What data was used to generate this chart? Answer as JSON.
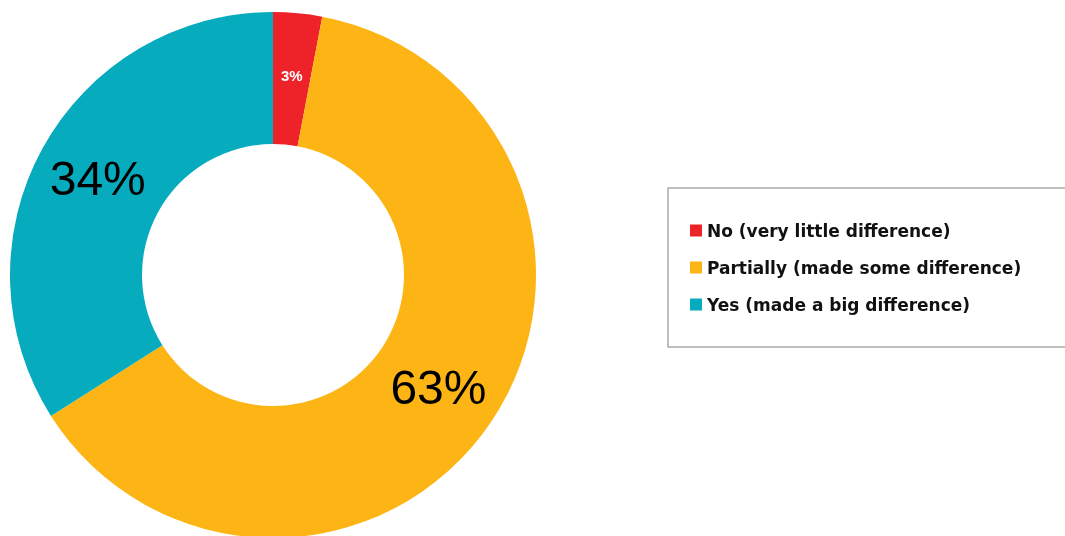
{
  "chart_data": {
    "type": "donut",
    "categories": [
      "No (very little difference)",
      "Partially (made some difference)",
      "Yes (made a big difference)"
    ],
    "values": [
      3,
      63,
      34
    ],
    "colors": [
      "#ee2229",
      "#fdb515",
      "#06abbd"
    ],
    "value_labels": [
      "3%",
      "63%",
      "34%"
    ],
    "legend": "right"
  }
}
